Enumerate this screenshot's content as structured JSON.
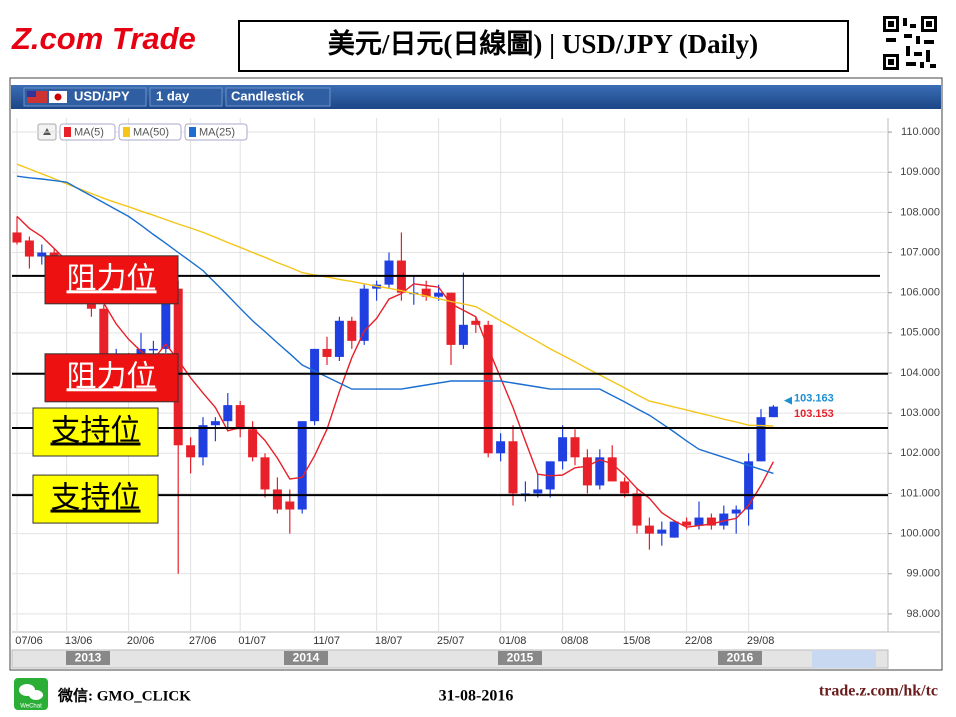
{
  "header": {
    "logo": "Z.com Trade",
    "title": "美元/日元(日線圖) | USD/JPY (Daily)"
  },
  "toolbar": {
    "symbol": "USD/JPY",
    "period": "1 day",
    "style": "Candlestick"
  },
  "chart_data": {
    "type": "candlestick",
    "categories": [
      "07/06",
      null,
      null,
      null,
      "13/06",
      null,
      null,
      null,
      null,
      "20/06",
      null,
      null,
      null,
      null,
      "27/06",
      null,
      null,
      null,
      "01/07",
      null,
      null,
      null,
      null,
      null,
      "11/07",
      null,
      null,
      null,
      null,
      "18/07",
      null,
      null,
      null,
      null,
      "25/07",
      null,
      null,
      null,
      null,
      "01/08",
      null,
      null,
      null,
      null,
      "08/08",
      null,
      null,
      null,
      null,
      "15/08",
      null,
      null,
      null,
      null,
      "22/08",
      null,
      null,
      null,
      null,
      "29/08",
      null,
      null
    ],
    "open": [
      107.5,
      107.3,
      106.9,
      107.0,
      106.7,
      106.0,
      106.1,
      105.6,
      104.2,
      104.2,
      104.1,
      104.6,
      104.6,
      106.1,
      102.2,
      101.9,
      102.7,
      102.8,
      103.2,
      102.6,
      101.9,
      101.1,
      100.8,
      100.6,
      102.8,
      104.6,
      104.4,
      105.3,
      104.8,
      106.1,
      106.2,
      106.8,
      106.0,
      106.1,
      105.9,
      106.0,
      104.7,
      105.3,
      105.2,
      102.0,
      102.3,
      101.0,
      101.0,
      101.1,
      101.8,
      102.4,
      101.9,
      101.2,
      101.9,
      101.3,
      101.0,
      100.2,
      100.0,
      99.9,
      100.3,
      100.2,
      100.4,
      100.2,
      100.5,
      100.6,
      101.8,
      102.9
    ],
    "high": [
      107.9,
      107.4,
      107.2,
      107.1,
      106.9,
      106.3,
      106.2,
      105.7,
      104.6,
      104.5,
      105.0,
      104.8,
      106.2,
      106.3,
      102.4,
      102.9,
      102.9,
      103.5,
      103.3,
      102.8,
      102.0,
      101.4,
      101.1,
      102.8,
      104.6,
      104.9,
      105.4,
      105.4,
      106.2,
      106.3,
      107.0,
      107.5,
      106.4,
      106.3,
      106.2,
      106.0,
      106.5,
      105.4,
      105.3,
      102.5,
      102.7,
      101.3,
      101.5,
      101.8,
      102.7,
      102.6,
      102.1,
      102.1,
      102.2,
      101.4,
      101.1,
      100.4,
      100.3,
      100.3,
      100.4,
      100.8,
      100.5,
      100.7,
      100.7,
      102.0,
      103.1,
      103.2
    ],
    "low": [
      107.2,
      106.6,
      106.7,
      106.4,
      105.8,
      105.9,
      105.4,
      104.0,
      103.6,
      103.8,
      104.0,
      104.4,
      104.5,
      99.0,
      101.5,
      101.7,
      102.3,
      102.6,
      102.4,
      101.8,
      100.9,
      100.5,
      100.0,
      100.5,
      102.7,
      104.2,
      104.3,
      104.6,
      104.7,
      105.8,
      106.1,
      105.8,
      105.7,
      105.8,
      105.8,
      104.2,
      104.6,
      105.0,
      101.9,
      101.8,
      100.7,
      100.8,
      100.9,
      100.9,
      101.6,
      101.7,
      101.0,
      101.1,
      101.3,
      100.9,
      100.0,
      99.6,
      99.7,
      99.9,
      100.1,
      100.1,
      100.1,
      100.1,
      100.0,
      100.2,
      101.8,
      102.9
    ],
    "close": [
      107.25,
      106.9,
      107.0,
      106.8,
      106.0,
      106.1,
      105.6,
      104.2,
      104.2,
      104.1,
      104.6,
      104.6,
      106.1,
      102.2,
      101.9,
      102.7,
      102.8,
      103.2,
      102.6,
      101.9,
      101.1,
      100.6,
      100.6,
      102.8,
      104.6,
      104.4,
      105.3,
      104.8,
      106.1,
      106.2,
      106.8,
      106.0,
      106.0,
      105.9,
      106.0,
      104.7,
      105.2,
      105.2,
      102.0,
      102.3,
      101.0,
      101.0,
      101.1,
      101.8,
      102.4,
      101.9,
      101.2,
      101.9,
      101.3,
      101.0,
      100.2,
      100.0,
      100.1,
      100.3,
      100.2,
      100.4,
      100.2,
      100.5,
      100.6,
      101.8,
      102.9,
      103.163
    ],
    "up_color": "#1f3fe0",
    "down_color": "#e8202a",
    "series": [
      {
        "name": "MA(5)",
        "color": "#e8202a",
        "values": [
          107.9,
          107.6,
          107.4,
          107.1,
          106.79,
          106.56,
          106.3,
          105.74,
          105.22,
          104.84,
          104.54,
          104.34,
          104.72,
          104.32,
          103.88,
          103.5,
          103.14,
          102.56,
          102.64,
          102.64,
          102.32,
          101.88,
          101.36,
          101.4,
          101.94,
          102.6,
          103.54,
          104.38,
          105.04,
          105.36,
          105.84,
          105.98,
          106.22,
          106.18,
          106.14,
          105.72,
          105.56,
          105.4,
          104.62,
          103.88,
          103.14,
          102.3,
          101.48,
          101.44,
          101.46,
          101.64,
          101.68,
          101.84,
          101.74,
          101.46,
          101.12,
          100.88,
          100.52,
          100.32,
          100.16,
          100.2,
          100.24,
          100.32,
          100.38,
          100.7,
          101.2,
          101.79
        ]
      },
      {
        "name": "MA(50)",
        "color": "#f5c518",
        "values": [
          109.2,
          109.08,
          108.96,
          108.84,
          108.71,
          108.59,
          108.47,
          108.35,
          108.24,
          108.14,
          108.03,
          107.93,
          107.82,
          107.71,
          107.61,
          107.5,
          107.38,
          107.25,
          107.13,
          107.0,
          106.88,
          106.75,
          106.63,
          106.5,
          106.44,
          106.39,
          106.33,
          106.28,
          106.22,
          106.16,
          106.11,
          106.05,
          105.98,
          105.92,
          105.85,
          105.78,
          105.72,
          105.65,
          105.48,
          105.3,
          105.13,
          104.95,
          104.78,
          104.6,
          104.44,
          104.28,
          104.11,
          103.95,
          103.79,
          103.63,
          103.46,
          103.3,
          103.23,
          103.15,
          103.08,
          103.0,
          102.93,
          102.85,
          102.78,
          102.7,
          102.69,
          102.68
        ]
      },
      {
        "name": "MA(25)",
        "color": "#1a6fd1",
        "values": [
          108.9,
          108.86,
          108.83,
          108.79,
          108.75,
          108.58,
          108.41,
          108.24,
          108.07,
          107.9,
          107.68,
          107.45,
          107.23,
          107.0,
          106.78,
          106.55,
          106.24,
          105.93,
          105.61,
          105.3,
          105.03,
          104.75,
          104.48,
          104.2,
          104.05,
          103.9,
          103.75,
          103.6,
          103.6,
          103.6,
          103.6,
          103.6,
          103.65,
          103.7,
          103.75,
          103.8,
          103.8,
          103.8,
          103.8,
          103.8,
          103.75,
          103.7,
          103.65,
          103.6,
          103.6,
          103.6,
          103.6,
          103.6,
          103.44,
          103.28,
          103.11,
          102.95,
          102.74,
          102.53,
          102.31,
          102.1,
          102.0,
          101.9,
          101.8,
          101.7,
          101.6,
          101.5
        ]
      }
    ],
    "ylim": [
      97.55,
      110.35
    ],
    "yticks": [
      {
        "value": 98,
        "label": "98.000"
      },
      {
        "value": 99,
        "label": "99.000"
      },
      {
        "value": 100,
        "label": "100.000"
      },
      {
        "value": 101,
        "label": "101.000"
      },
      {
        "value": 102,
        "label": "102.000"
      },
      {
        "value": 103,
        "label": "103.000"
      },
      {
        "value": 104,
        "label": "104.000"
      },
      {
        "value": 105,
        "label": "105.000"
      },
      {
        "value": 106,
        "label": "106.000"
      },
      {
        "value": 107,
        "label": "107.000"
      },
      {
        "value": 108,
        "label": "108.000"
      },
      {
        "value": 109,
        "label": "109.000"
      },
      {
        "value": 110,
        "label": "110.000"
      }
    ],
    "grid": true,
    "price_markers": [
      {
        "value": 103.163,
        "color": "#1a8fd1"
      },
      {
        "value": 103.153,
        "color": "#e8202a"
      }
    ],
    "levels": [
      {
        "label": "阻力位",
        "value": 106.42,
        "box_color": "#ee1111",
        "text_color": "#ffffff"
      },
      {
        "label": "阻力位",
        "value": 103.98,
        "box_color": "#ee1111",
        "text_color": "#ffffff"
      },
      {
        "label": "支持位",
        "value": 102.63,
        "box_color": "#ffff00",
        "text_color": "#000000"
      },
      {
        "label": "支持位",
        "value": 100.96,
        "box_color": "#ffff00",
        "text_color": "#000000"
      }
    ],
    "navigator_years": [
      "2013",
      "2014",
      "2015",
      "2016"
    ]
  },
  "footer": {
    "wechat_icon": "WeChat",
    "wechat": "微信: GMO_CLICK",
    "date": "31-08-2016",
    "url": "trade.z.com/hk/tc"
  }
}
